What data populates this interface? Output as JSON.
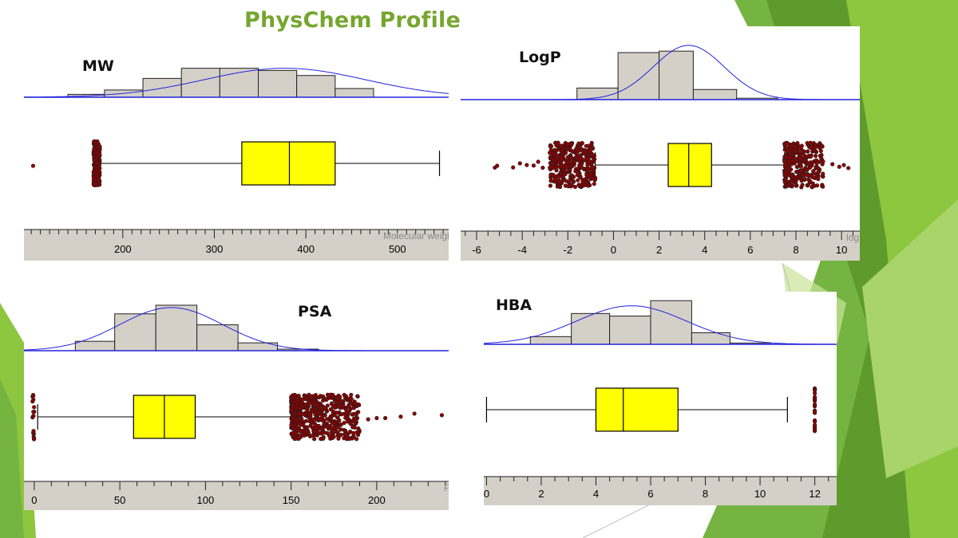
{
  "slide": {
    "title": "PhysChem Profile",
    "colors": {
      "title": "#76a62e",
      "box_fill": "#ffff00",
      "bar_fill": "#d4d0c8",
      "curve": "#2222dd",
      "outlier": "#8b0000",
      "axis_band": "#d4d0c8"
    }
  },
  "chart_data": [
    {
      "id": "mw",
      "type": "histogram+boxplot",
      "title": "MW",
      "xlabel": "Molecular weight",
      "xlim": [
        92,
        556
      ],
      "ticks": [
        200,
        300,
        400,
        500
      ],
      "minor_step": 10,
      "hist": {
        "edges": [
          140,
          180,
          222,
          264,
          306,
          348,
          390,
          432,
          474,
          516
        ],
        "heights": [
          4,
          10,
          26,
          40,
          40,
          37,
          30,
          12,
          0
        ],
        "ymax": 44
      },
      "curve": {
        "mean": 377,
        "sd": 88,
        "peak": 40
      },
      "box": {
        "whisker_low": 175,
        "q1": 330,
        "median": 382,
        "q3": 432,
        "whisker_high": 546
      },
      "outliers": {
        "low_range": [
          168,
          175
        ],
        "low_count": 230,
        "low_extra": [
          102
        ],
        "high_range": null,
        "high_count": 0,
        "high_extra": []
      }
    },
    {
      "id": "logp",
      "type": "histogram+boxplot",
      "title": "LogP",
      "xlabel": "logP",
      "xlim": [
        -6.7,
        10.8
      ],
      "ticks": [
        -6,
        -4,
        -2,
        0,
        2,
        4,
        6,
        8,
        10
      ],
      "minor_step": 0.5,
      "hist": {
        "edges": [
          -1.6,
          0.2,
          2.0,
          3.5,
          5.4,
          7.2
        ],
        "heights": [
          16,
          65,
          67,
          14,
          2
        ],
        "ymax": 76
      },
      "curve": {
        "mean": 3.3,
        "sd": 1.55,
        "peak": 75
      },
      "box": {
        "whisker_low": -0.8,
        "q1": 2.4,
        "median": 3.3,
        "q3": 4.3,
        "whisker_high": 7.5
      },
      "outliers": {
        "low_range": [
          -2.8,
          -0.8
        ],
        "low_count": 330,
        "low_extra": [
          -5.2,
          -5.1,
          -4.1,
          -3.8,
          -3.5,
          -3.3,
          -3.1,
          -4.4
        ],
        "high_range": [
          7.5,
          9.2
        ],
        "high_count": 320,
        "high_extra": [
          9.6,
          9.9,
          10.3,
          10.1
        ]
      }
    },
    {
      "id": "psa",
      "type": "histogram+boxplot",
      "title": "PSA",
      "xlabel": "PSA",
      "xlim": [
        -6,
        242
      ],
      "ticks": [
        0,
        50,
        100,
        150,
        200
      ],
      "minor_step": 10,
      "hist": {
        "edges": [
          24,
          47,
          71,
          95,
          119,
          142,
          166
        ],
        "heights": [
          12,
          47,
          58,
          33,
          10,
          2
        ],
        "ymax": 62
      },
      "curve": {
        "mean": 80,
        "sd": 30,
        "peak": 55
      },
      "box": {
        "whisker_low": 2,
        "q1": 58,
        "median": 76,
        "q3": 94,
        "whisker_high": 150
      },
      "outliers": {
        "low_range": [
          -1,
          0
        ],
        "low_count": 18,
        "low_extra": [],
        "high_range": [
          150,
          190
        ],
        "high_count": 520,
        "high_extra": [
          195,
          200,
          205,
          214,
          222,
          238
        ]
      }
    },
    {
      "id": "hba",
      "type": "histogram+boxplot",
      "title": "HBA",
      "xlabel": "",
      "xlim": [
        -0.1,
        12.8
      ],
      "ticks": [
        0,
        2,
        4,
        6,
        8,
        10,
        12
      ],
      "minor_step": 0.5,
      "hist": {
        "edges": [
          1.6,
          3.1,
          4.5,
          6.0,
          7.5,
          8.9,
          10.4
        ],
        "heights": [
          6,
          24,
          22,
          34,
          9,
          1
        ],
        "ymax": 36
      },
      "curve": {
        "mean": 5.3,
        "sd": 2.0,
        "peak": 30
      },
      "box": {
        "whisker_low": 0,
        "q1": 4,
        "median": 5,
        "q3": 7,
        "whisker_high": 11
      },
      "outliers": {
        "low_range": null,
        "low_count": 0,
        "low_extra": [],
        "high_range": [
          12,
          12
        ],
        "high_count": 24,
        "high_extra": []
      }
    }
  ]
}
